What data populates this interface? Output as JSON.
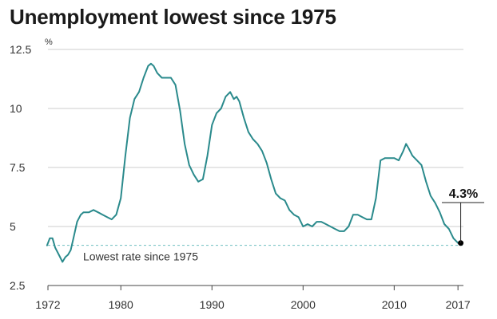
{
  "chart_data": {
    "type": "line",
    "title": "Unemployment lowest since 1975",
    "ylabel": "%",
    "xlabel": "",
    "xlim": [
      1972,
      2017.6
    ],
    "ylim": [
      2.5,
      12.5
    ],
    "x_ticks": [
      "1972",
      "1980",
      "1990",
      "2000",
      "2010",
      "2017"
    ],
    "y_ticks": [
      "12.5",
      "10",
      "7.5",
      "5",
      "2.5"
    ],
    "grid": "horizontal",
    "colors": {
      "line": "#2a8a8c",
      "reference_line": "#6fbfc1",
      "grid": "#cccccc",
      "marker": "#000000"
    },
    "series": [
      {
        "x": [
          1971.9,
          1972.2,
          1972.5,
          1972.8,
          1973.2,
          1973.6,
          1973.9,
          1974.2,
          1974.5,
          1974.8,
          1975.2,
          1975.6,
          1975.9,
          1976.5,
          1977.0,
          1977.5,
          1978.0,
          1978.5,
          1979.0,
          1979.5,
          1980.0,
          1980.5,
          1981.0,
          1981.5,
          1982.0,
          1982.5,
          1983.0,
          1983.3,
          1983.6,
          1984.0,
          1984.5,
          1985.0,
          1985.5,
          1986.0,
          1986.5,
          1987.0,
          1987.5,
          1988.0,
          1988.5,
          1989.0,
          1989.5,
          1990.0,
          1990.5,
          1991.0,
          1991.5,
          1992.0,
          1992.4,
          1992.7,
          1993.0,
          1993.5,
          1994.0,
          1994.5,
          1995.0,
          1995.5,
          1996.0,
          1996.5,
          1997.0,
          1997.5,
          1998.0,
          1998.5,
          1999.0,
          1999.5,
          2000.0,
          2000.5,
          2001.0,
          2001.5,
          2002.0,
          2002.5,
          2003.0,
          2003.5,
          2004.0,
          2004.5,
          2005.0,
          2005.5,
          2006.0,
          2006.5,
          2007.0,
          2007.5,
          2008.0,
          2008.5,
          2009.0,
          2009.5,
          2010.0,
          2010.5,
          2011.0,
          2011.3,
          2011.6,
          2012.0,
          2012.5,
          2013.0,
          2013.5,
          2014.0,
          2014.5,
          2015.0,
          2015.5,
          2016.0,
          2016.5,
          2017.0,
          2017.3
        ],
        "values": [
          4.2,
          4.5,
          4.5,
          4.1,
          3.8,
          3.5,
          3.7,
          3.8,
          4.0,
          4.5,
          5.2,
          5.5,
          5.6,
          5.6,
          5.7,
          5.6,
          5.5,
          5.4,
          5.3,
          5.5,
          6.2,
          8.0,
          9.6,
          10.4,
          10.7,
          11.3,
          11.8,
          11.9,
          11.8,
          11.5,
          11.3,
          11.3,
          11.3,
          11.0,
          9.9,
          8.5,
          7.6,
          7.2,
          6.9,
          7.0,
          8.0,
          9.3,
          9.8,
          10.0,
          10.5,
          10.7,
          10.4,
          10.5,
          10.3,
          9.6,
          9.0,
          8.7,
          8.5,
          8.2,
          7.7,
          7.0,
          6.4,
          6.2,
          6.1,
          5.7,
          5.5,
          5.4,
          5.0,
          5.1,
          5.0,
          5.2,
          5.2,
          5.1,
          5.0,
          4.9,
          4.8,
          4.8,
          5.0,
          5.5,
          5.5,
          5.4,
          5.3,
          5.3,
          6.2,
          7.8,
          7.9,
          7.9,
          7.9,
          7.8,
          8.2,
          8.5,
          8.3,
          8.0,
          7.8,
          7.6,
          6.9,
          6.3,
          6.0,
          5.6,
          5.1,
          4.9,
          4.5,
          4.3,
          4.3
        ]
      }
    ],
    "reference_line": {
      "value": 4.2,
      "label": "Lowest rate since 1975"
    },
    "callout": {
      "x": 2017.3,
      "value": 4.3,
      "label": "4.3%"
    }
  }
}
